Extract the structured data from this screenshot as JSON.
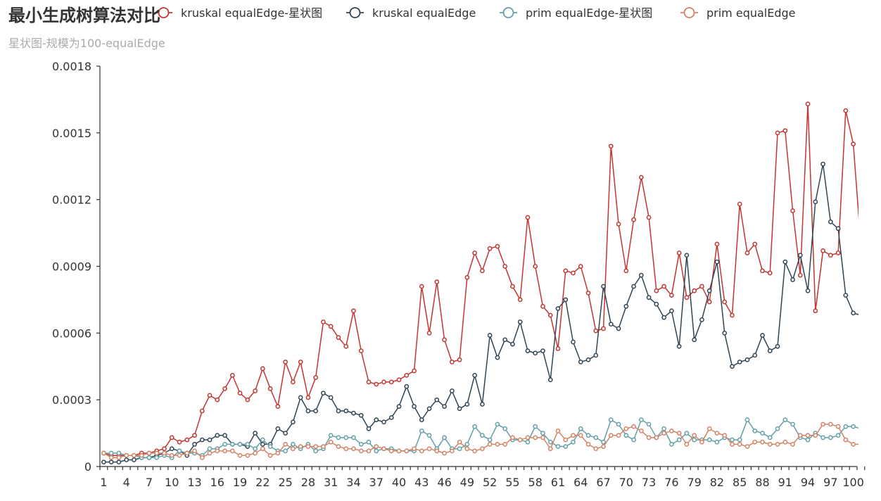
{
  "chart_data": {
    "type": "line",
    "title": "最小生成树算法对比",
    "subtitle": "星状图-规模为100-equalEdge",
    "xlabel": "",
    "ylabel": "",
    "x_start": 1,
    "x_end": 100,
    "x_tick_labels": [
      "1",
      "4",
      "7",
      "10",
      "13",
      "16",
      "19",
      "22",
      "25",
      "28",
      "31",
      "34",
      "37",
      "40",
      "43",
      "46",
      "49",
      "52",
      "55",
      "58",
      "61",
      "64",
      "67",
      "70",
      "73",
      "76",
      "79",
      "82",
      "85",
      "88",
      "91",
      "94",
      "97",
      "100"
    ],
    "ylim": [
      0,
      0.0018
    ],
    "y_ticks": [
      0,
      0.0003,
      0.0006,
      0.0009,
      0.0012,
      0.0015,
      0.0018
    ],
    "y_tick_labels": [
      "0",
      "0.0003",
      "0.0006",
      "0.0009",
      "0.0012",
      "0.0015",
      "0.0018"
    ],
    "legend_position": "top",
    "series": [
      {
        "name": "kruskal equalEdge-星状图",
        "color": "#c23531",
        "values": [
          6e-05,
          5e-05,
          5e-05,
          5e-05,
          5e-05,
          6e-05,
          6e-05,
          7e-05,
          8e-05,
          0.00013,
          0.00011,
          0.00012,
          0.00014,
          0.00025,
          0.00032,
          0.0003,
          0.00035,
          0.00041,
          0.00033,
          0.0003,
          0.00034,
          0.00044,
          0.00035,
          0.00027,
          0.00047,
          0.00038,
          0.00047,
          0.00031,
          0.0004,
          0.00065,
          0.00063,
          0.00058,
          0.00054,
          0.0007,
          0.00052,
          0.00038,
          0.00037,
          0.00038,
          0.00038,
          0.00039,
          0.00041,
          0.00043,
          0.00081,
          0.0006,
          0.00083,
          0.00057,
          0.00047,
          0.00048,
          0.00085,
          0.00096,
          0.00088,
          0.00098,
          0.00099,
          0.0009,
          0.00081,
          0.00075,
          0.00112,
          0.0009,
          0.00072,
          0.00068,
          0.00053,
          0.00088,
          0.00087,
          0.0009,
          0.00078,
          0.00061,
          0.00062,
          0.00144,
          0.00109,
          0.00088,
          0.00111,
          0.0013,
          0.00112,
          0.00079,
          0.00081,
          0.00077,
          0.00096,
          0.00076,
          0.00079,
          0.00081,
          0.00074,
          0.001,
          0.00074,
          0.00068,
          0.00118,
          0.00096,
          0.001,
          0.00088,
          0.00087,
          0.0015,
          0.00151,
          0.00115,
          0.00086,
          0.00163,
          0.0007,
          0.00097,
          0.00095,
          0.00096,
          0.0016,
          0.00145,
          0.001
        ]
      },
      {
        "name": "kruskal equalEdge",
        "color": "#2f4554",
        "values": [
          2e-05,
          2e-05,
          2e-05,
          3e-05,
          3e-05,
          4e-05,
          4e-05,
          5e-05,
          6e-05,
          8e-05,
          7e-05,
          5e-05,
          0.0001,
          0.00012,
          0.00012,
          0.00014,
          0.00014,
          0.0001,
          0.0001,
          9e-05,
          0.00015,
          0.0001,
          0.0001,
          0.00017,
          0.00015,
          0.0002,
          0.00031,
          0.00025,
          0.00025,
          0.00033,
          0.00031,
          0.00025,
          0.00025,
          0.00024,
          0.00023,
          0.00017,
          0.00021,
          0.0002,
          0.00022,
          0.00027,
          0.00036,
          0.00027,
          0.00021,
          0.00026,
          0.0003,
          0.00027,
          0.00034,
          0.00026,
          0.00028,
          0.00041,
          0.00028,
          0.00059,
          0.00049,
          0.00057,
          0.00055,
          0.00065,
          0.00052,
          0.00051,
          0.00052,
          0.00039,
          0.00071,
          0.00075,
          0.00056,
          0.00047,
          0.00048,
          0.0005,
          0.00081,
          0.00064,
          0.00062,
          0.00072,
          0.00081,
          0.00086,
          0.00076,
          0.00073,
          0.00067,
          0.0007,
          0.00054,
          0.00095,
          0.00057,
          0.00066,
          0.00079,
          0.00092,
          0.0006,
          0.00045,
          0.00047,
          0.00048,
          0.0005,
          0.00059,
          0.00052,
          0.00054,
          0.00092,
          0.00084,
          0.00095,
          0.00079,
          0.00119,
          0.00136,
          0.0011,
          0.00107,
          0.00077,
          0.00069,
          0.00068
        ]
      },
      {
        "name": "prim equalEdge-星状图",
        "color": "#61a0a8",
        "values": [
          6e-05,
          6e-05,
          6e-05,
          5e-05,
          5e-05,
          4e-05,
          4e-05,
          4e-05,
          5e-05,
          4e-05,
          7e-05,
          6e-05,
          6e-05,
          5e-05,
          8e-05,
          8e-05,
          0.0001,
          0.0001,
          0.0001,
          0.0001,
          8e-05,
          0.00012,
          9e-05,
          7e-05,
          7e-05,
          0.0001,
          8e-05,
          0.0001,
          7e-05,
          8e-05,
          0.00014,
          0.00013,
          0.00013,
          0.00013,
          0.0001,
          0.00011,
          7e-05,
          8e-05,
          8e-05,
          7e-05,
          7e-05,
          7e-05,
          0.00016,
          0.00014,
          8e-05,
          0.00013,
          8e-05,
          8e-05,
          0.0001,
          0.00018,
          0.00014,
          0.00012,
          0.00019,
          0.00017,
          0.00012,
          0.00012,
          0.00011,
          0.00018,
          0.00015,
          0.00011,
          9e-05,
          9e-05,
          0.00011,
          0.00017,
          0.00014,
          0.00013,
          0.00011,
          0.00021,
          0.00019,
          0.00014,
          0.00012,
          0.00021,
          0.00019,
          0.00013,
          0.00017,
          0.0001,
          0.00012,
          0.00015,
          0.00012,
          0.00012,
          0.00012,
          0.00011,
          0.00013,
          0.00012,
          0.00012,
          0.00021,
          0.00016,
          0.00015,
          0.00013,
          0.00017,
          0.00021,
          0.00019,
          0.00013,
          0.00012,
          0.00015,
          0.00013,
          0.00013,
          0.00014,
          0.00018,
          0.00018,
          0.00017
        ]
      },
      {
        "name": "prim equalEdge",
        "color": "#d48265",
        "values": [
          6e-05,
          4e-05,
          4e-05,
          5e-05,
          5e-05,
          5e-05,
          6e-05,
          6e-05,
          6e-05,
          5e-05,
          5e-05,
          6e-05,
          7e-05,
          4e-05,
          6e-05,
          7e-05,
          7e-05,
          7e-05,
          5e-05,
          5e-05,
          6e-05,
          8e-05,
          5e-05,
          6e-05,
          0.0001,
          8e-05,
          9e-05,
          9e-05,
          9e-05,
          9e-05,
          0.00011,
          9e-05,
          8e-05,
          8e-05,
          7e-05,
          7e-05,
          9e-05,
          8e-05,
          7e-05,
          7e-05,
          7e-05,
          8e-05,
          7e-05,
          8e-05,
          7e-05,
          6e-05,
          7e-05,
          0.00011,
          8e-05,
          7e-05,
          8e-05,
          0.0001,
          0.0001,
          0.0001,
          0.00013,
          0.00012,
          0.00013,
          0.00013,
          0.00013,
          8e-05,
          0.00016,
          0.00012,
          0.00014,
          0.00014,
          0.0001,
          8e-05,
          9e-05,
          0.00014,
          0.00014,
          0.00017,
          0.00018,
          0.00016,
          0.00013,
          0.00013,
          0.00015,
          0.00016,
          0.00015,
          0.0001,
          0.00014,
          0.00011,
          0.00017,
          0.00015,
          0.00014,
          0.0001,
          0.0001,
          9e-05,
          0.00011,
          0.00011,
          0.0001,
          0.0001,
          0.00011,
          0.0001,
          0.00014,
          0.00014,
          0.00014,
          0.00019,
          0.00019,
          0.00018,
          0.00012,
          0.0001,
          0.0001
        ]
      }
    ]
  }
}
